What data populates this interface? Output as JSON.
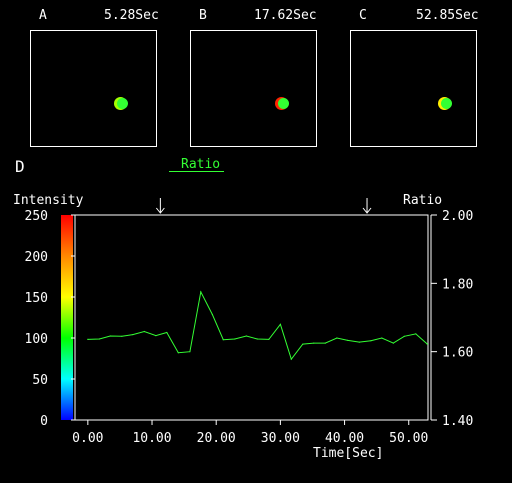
{
  "panels": [
    {
      "letter": "A",
      "time": "5.28Sec",
      "dot_color": "#33ff33",
      "dot_ring": "#a6ff00"
    },
    {
      "letter": "B",
      "time": "17.62Sec",
      "dot_color": "#33ff33",
      "dot_ring": "#ff2200"
    },
    {
      "letter": "C",
      "time": "52.85Sec",
      "dot_color": "#33ff33",
      "dot_ring": "#ffee00"
    }
  ],
  "section_label": "D",
  "series_label": "Ratio",
  "chart_data": {
    "type": "line",
    "left_axis_title": "Intensity",
    "right_axis_title": "Ratio",
    "xlabel": "Time[Sec]",
    "xlim": [
      -2,
      53
    ],
    "left_ylim": [
      0,
      250
    ],
    "right_ylim": [
      1.4,
      2.0
    ],
    "x_ticks": [
      "0.00",
      "10.00",
      "20.00",
      "30.00",
      "40.00",
      "50.00"
    ],
    "x_tick_values": [
      0,
      10,
      20,
      30,
      40,
      50
    ],
    "left_ticks": [
      "0",
      "50",
      "100",
      "150",
      "200",
      "250"
    ],
    "left_tick_values": [
      0,
      50,
      100,
      150,
      200,
      250
    ],
    "right_ticks": [
      "1.40",
      "1.60",
      "1.80",
      "2.00"
    ],
    "right_tick_values": [
      1.4,
      1.6,
      1.8,
      2.0
    ],
    "arrow_markers_x": [
      11.3,
      43.5
    ],
    "colorbar": [
      "#ff0000",
      "#ff8800",
      "#ffff00",
      "#00ff00",
      "#00ffff",
      "#0000ff"
    ],
    "series": [
      {
        "color": "#33ff33",
        "x": [
          0,
          1.8,
          3.5,
          5.3,
          7,
          8.8,
          10.6,
          12.3,
          14.1,
          15.9,
          17.6,
          19.4,
          21.1,
          22.9,
          24.7,
          26.4,
          28.2,
          30,
          31.7,
          33.5,
          35.2,
          37,
          38.8,
          40.5,
          42.3,
          44.1,
          45.8,
          47.6,
          49.3,
          51.1,
          52.9
        ],
        "y": [
          1.636,
          1.637,
          1.646,
          1.645,
          1.65,
          1.659,
          1.647,
          1.656,
          1.597,
          1.6,
          1.775,
          1.709,
          1.635,
          1.637,
          1.646,
          1.637,
          1.636,
          1.68,
          1.578,
          1.622,
          1.625,
          1.625,
          1.64,
          1.633,
          1.628,
          1.632,
          1.64,
          1.625,
          1.645,
          1.652,
          1.622
        ]
      }
    ]
  }
}
